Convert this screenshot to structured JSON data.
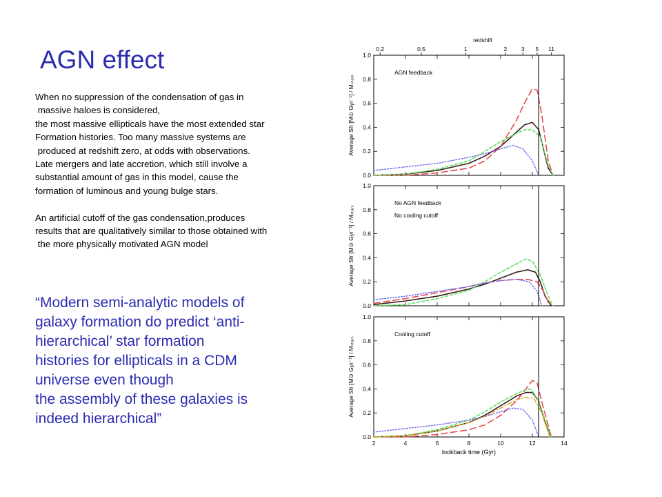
{
  "slide": {
    "title": "AGN effect",
    "paragraph1": [
      "When no suppression of the condensation of gas in",
      " massive haloes is considered,",
      "the most massive ellipticals have the most extended star",
      "Formation histories. Too many massive systems are",
      " produced at redshift zero, at odds with observations.",
      "Late mergers and late accretion, which still involve a",
      "substantial amount of gas in this model, cause the",
      "formation of luminous and young bulge stars."
    ],
    "paragraph2": [
      "An artificial cutoff of the gas condensation,produces",
      "results that are qualitatively similar to those obtained with",
      " the more physically motivated AGN model"
    ],
    "quote": [
      "“Modern semi-analytic models of",
      "galaxy formation do predict ‘anti-",
      "hierarchical’ star formation",
      "histories for ellipticals in a CDM",
      "universe even though",
      "the assembly of these galaxies is",
      "indeed hierarchical”"
    ]
  },
  "colors": {
    "title": "#2b2bb0",
    "quote": "#2b2bb0",
    "solid": "#3a1a1a",
    "red_dashed": "#e84a4a",
    "green_dashed": "#55dd55",
    "blue_dotted": "#6a6aee",
    "orange_dashdot": "#e0a020"
  },
  "chart_data": {
    "type": "line",
    "xlabel": "lookback time (Gyr)",
    "ylabel": "Average Sfr [M⊙ Gyr⁻¹] / Mₛₜₐᵣₛ",
    "top_axis_label": "redshift",
    "top_ticks": [
      "0.2",
      "0.5",
      "1",
      "2",
      "3",
      "5",
      "11"
    ],
    "top_tick_positions_gyr": [
      2.4,
      5.0,
      7.8,
      10.3,
      11.4,
      12.3,
      13.2
    ],
    "xlim": [
      2,
      14
    ],
    "ylim": [
      0,
      1.0
    ],
    "x_ticks": [
      "2",
      "4",
      "6",
      "8",
      "10",
      "12",
      "14"
    ],
    "y_ticks": [
      "0.0",
      "0.2",
      "0.4",
      "0.6",
      "0.8",
      "1.0"
    ],
    "vertical_line_x": 12.4,
    "panels": [
      {
        "label": [
          "AGN feedback"
        ],
        "series": [
          {
            "style": "solid",
            "x": [
              2,
              4,
              6,
              8,
              9,
              10,
              11,
              11.5,
              12,
              12.4,
              12.7,
              13,
              13.3
            ],
            "y": [
              0.0,
              0.01,
              0.04,
              0.1,
              0.16,
              0.24,
              0.36,
              0.42,
              0.44,
              0.38,
              0.22,
              0.06,
              0.0
            ]
          },
          {
            "style": "red_dashed",
            "x": [
              2,
              4,
              6,
              8,
              9,
              10,
              11,
              11.5,
              12,
              12.3,
              12.6,
              13,
              13.3
            ],
            "y": [
              0.0,
              0.0,
              0.02,
              0.06,
              0.12,
              0.24,
              0.46,
              0.6,
              0.72,
              0.71,
              0.5,
              0.12,
              0.0
            ]
          },
          {
            "style": "green_dashed",
            "x": [
              2,
              4,
              6,
              8,
              9,
              10,
              11,
              11.5,
              12,
              12.5,
              13,
              13.3
            ],
            "y": [
              0.0,
              0.01,
              0.05,
              0.12,
              0.2,
              0.28,
              0.35,
              0.38,
              0.38,
              0.32,
              0.08,
              0.0
            ]
          },
          {
            "style": "blue_dotted",
            "x": [
              2,
              4,
              6,
              8,
              9,
              10,
              10.8,
              11.4,
              12,
              12.4
            ],
            "y": [
              0.04,
              0.07,
              0.1,
              0.15,
              0.18,
              0.22,
              0.25,
              0.22,
              0.12,
              0.0
            ]
          }
        ]
      },
      {
        "label": [
          "No AGN feedback",
          "No cooling cutoff"
        ],
        "series": [
          {
            "style": "solid",
            "x": [
              2,
              4,
              6,
              8,
              9,
              10,
              11,
              11.7,
              12.2,
              12.5,
              12.8,
              13.2
            ],
            "y": [
              0.01,
              0.04,
              0.08,
              0.14,
              0.18,
              0.23,
              0.28,
              0.3,
              0.28,
              0.2,
              0.08,
              0.0
            ]
          },
          {
            "style": "red_dashed",
            "x": [
              2,
              4,
              6,
              8,
              9,
              10,
              11,
              11.7,
              12.3,
              12.7,
              13.1
            ],
            "y": [
              0.02,
              0.06,
              0.11,
              0.16,
              0.19,
              0.21,
              0.22,
              0.22,
              0.2,
              0.12,
              0.0
            ]
          },
          {
            "style": "green_dashed",
            "x": [
              2,
              4,
              6,
              8,
              9,
              10,
              11,
              11.6,
              12,
              12.5,
              13,
              13.3
            ],
            "y": [
              0.0,
              0.01,
              0.06,
              0.13,
              0.2,
              0.28,
              0.35,
              0.39,
              0.37,
              0.26,
              0.08,
              0.0
            ]
          },
          {
            "style": "blue_dotted",
            "x": [
              2,
              4,
              6,
              8,
              9,
              10,
              11,
              11.8,
              12.3,
              12.6
            ],
            "y": [
              0.05,
              0.08,
              0.12,
              0.16,
              0.19,
              0.21,
              0.22,
              0.2,
              0.12,
              0.0
            ]
          }
        ]
      },
      {
        "label": [
          "Cooling cutoff"
        ],
        "series": [
          {
            "style": "solid",
            "x": [
              2,
              4,
              6,
              8,
              9,
              10,
              11,
              11.6,
              12,
              12.4,
              12.8,
              13.2
            ],
            "y": [
              0.0,
              0.01,
              0.05,
              0.12,
              0.18,
              0.26,
              0.34,
              0.37,
              0.37,
              0.3,
              0.12,
              0.0
            ]
          },
          {
            "style": "red_dashed",
            "x": [
              2,
              4,
              6,
              8,
              9,
              10,
              11,
              11.6,
              12,
              12.3,
              12.7,
              13.2
            ],
            "y": [
              0.0,
              0.0,
              0.02,
              0.06,
              0.1,
              0.18,
              0.3,
              0.4,
              0.47,
              0.45,
              0.24,
              0.0
            ]
          },
          {
            "style": "green_dashed",
            "x": [
              2,
              4,
              6,
              8,
              9,
              10,
              11,
              11.5,
              11.9,
              12.4,
              12.9,
              13.2
            ],
            "y": [
              0.0,
              0.01,
              0.06,
              0.14,
              0.21,
              0.29,
              0.36,
              0.39,
              0.4,
              0.3,
              0.1,
              0.0
            ]
          },
          {
            "style": "blue_dotted",
            "x": [
              2,
              4,
              6,
              8,
              9,
              10,
              10.8,
              11.4,
              12,
              12.4
            ],
            "y": [
              0.04,
              0.07,
              0.1,
              0.14,
              0.17,
              0.21,
              0.24,
              0.23,
              0.14,
              0.0
            ]
          },
          {
            "style": "orange_dashdot",
            "x": [
              2,
              4,
              6,
              8,
              9,
              10,
              11,
              11.6,
              12.1,
              12.6,
              13.1
            ],
            "y": [
              0.0,
              0.01,
              0.05,
              0.12,
              0.17,
              0.24,
              0.31,
              0.33,
              0.32,
              0.2,
              0.0
            ]
          }
        ]
      }
    ]
  }
}
